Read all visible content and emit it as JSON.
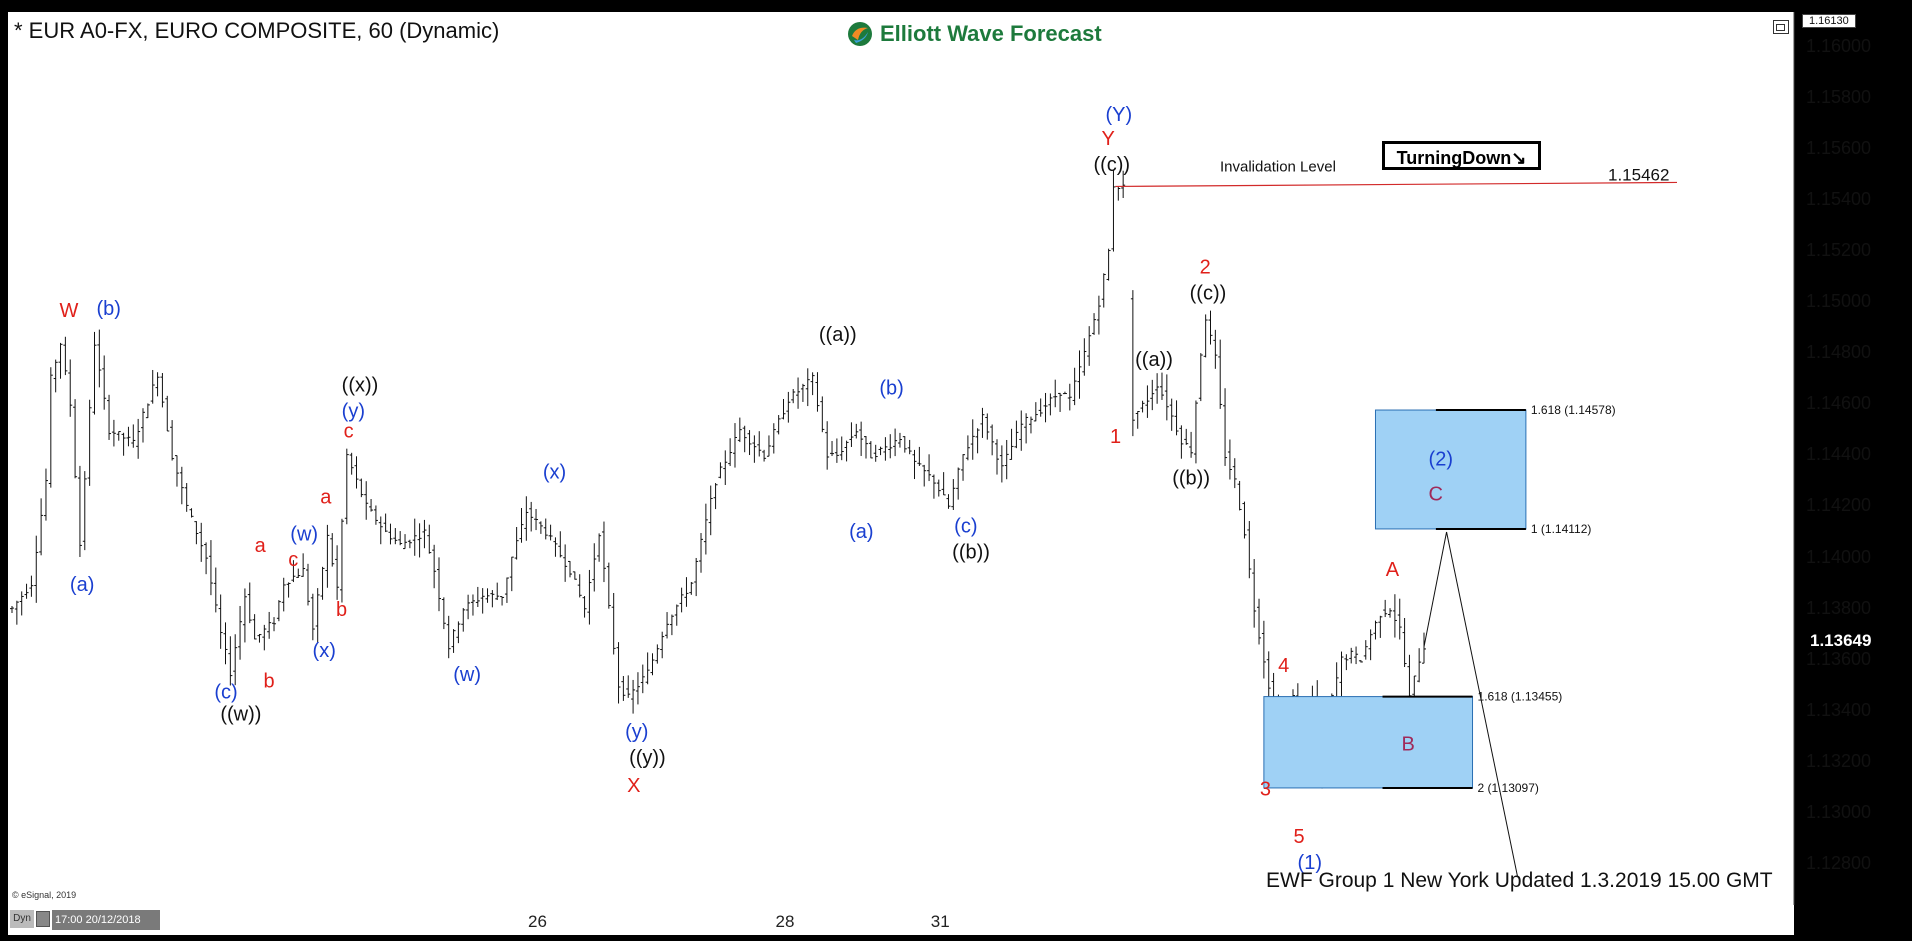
{
  "header": {
    "title": "* EUR A0-FX, EURO COMPOSITE, 60 (Dynamic)",
    "brand": "Elliott Wave Forecast",
    "brand_icon": "ewf-logo-icon"
  },
  "footer": {
    "copyright": "© eSignal, 2019",
    "update_note": "EWF Group 1 New York Updated 1.3.2019 15.00 GMT",
    "dyn_label": "Dyn",
    "cursor_date": "17:00 20/12/2018"
  },
  "badge": {
    "text": "TurningDown↘"
  },
  "price_axis": {
    "top_tag": "1.16130",
    "current_price": "1.13649",
    "labels": [
      "1.16000",
      "1.15800",
      "1.15600",
      "1.15400",
      "1.15200",
      "1.15000",
      "1.14800",
      "1.14600",
      "1.14400",
      "1.14200",
      "1.14000",
      "1.13800",
      "1.13600",
      "1.13400",
      "1.13200",
      "1.13000",
      "1.12800"
    ]
  },
  "colors": {
    "red": "#e0201a",
    "blue": "#1a3fd0",
    "black": "#111111",
    "purple": "#a02a5a",
    "box_fill": "#9fd1f5",
    "box_stroke": "#2a6fb3",
    "invalidation": "#d22a2a"
  },
  "chart_data": {
    "type": "ohlc",
    "title": "* EUR A0-FX, EURO COMPOSITE, 60 (Dynamic)",
    "x_ticks": [
      {
        "label": "26",
        "index": 108
      },
      {
        "label": "28",
        "index": 159
      },
      {
        "label": "31",
        "index": 191
      }
    ],
    "ylim": [
      1.1265,
      1.1613
    ],
    "y_ticks": [
      1.16,
      1.158,
      1.156,
      1.154,
      1.152,
      1.15,
      1.148,
      1.146,
      1.144,
      1.142,
      1.14,
      1.138,
      1.136,
      1.134,
      1.132,
      1.13,
      1.128
    ],
    "anchors": [
      [
        0,
        1.138
      ],
      [
        4,
        1.139
      ],
      [
        7,
        1.143
      ],
      [
        8,
        1.147
      ],
      [
        10,
        1.1484
      ],
      [
        12,
        1.146
      ],
      [
        14,
        1.1405
      ],
      [
        17,
        1.1484
      ],
      [
        20,
        1.145
      ],
      [
        25,
        1.1445
      ],
      [
        30,
        1.1472
      ],
      [
        33,
        1.144
      ],
      [
        36,
        1.142
      ],
      [
        40,
        1.14
      ],
      [
        43,
        1.137
      ],
      [
        45,
        1.1355
      ],
      [
        48,
        1.1385
      ],
      [
        50,
        1.1368
      ],
      [
        54,
        1.1375
      ],
      [
        56,
        1.139
      ],
      [
        60,
        1.1395
      ],
      [
        62,
        1.1372
      ],
      [
        65,
        1.1408
      ],
      [
        67,
        1.1388
      ],
      [
        69,
        1.144
      ],
      [
        73,
        1.142
      ],
      [
        77,
        1.141
      ],
      [
        80,
        1.1405
      ],
      [
        85,
        1.141
      ],
      [
        87,
        1.1395
      ],
      [
        90,
        1.1365
      ],
      [
        93,
        1.138
      ],
      [
        97,
        1.1385
      ],
      [
        101,
        1.1385
      ],
      [
        103,
        1.14
      ],
      [
        106,
        1.1418
      ],
      [
        110,
        1.141
      ],
      [
        115,
        1.1395
      ],
      [
        118,
        1.138
      ],
      [
        121,
        1.141
      ],
      [
        123,
        1.138
      ],
      [
        125,
        1.135
      ],
      [
        127,
        1.1345
      ],
      [
        131,
        1.1355
      ],
      [
        135,
        1.1375
      ],
      [
        140,
        1.139
      ],
      [
        145,
        1.143
      ],
      [
        150,
        1.145
      ],
      [
        155,
        1.144
      ],
      [
        160,
        1.1462
      ],
      [
        165,
        1.147
      ],
      [
        168,
        1.144
      ],
      [
        170,
        1.144
      ],
      [
        174,
        1.145
      ],
      [
        177,
        1.144
      ],
      [
        180,
        1.1443
      ],
      [
        183,
        1.1447
      ],
      [
        186,
        1.1437
      ],
      [
        190,
        1.143
      ],
      [
        193,
        1.142
      ],
      [
        196,
        1.144
      ],
      [
        200,
        1.1455
      ],
      [
        204,
        1.1435
      ],
      [
        208,
        1.1452
      ],
      [
        212,
        1.1458
      ],
      [
        216,
        1.1465
      ],
      [
        218,
        1.1462
      ],
      [
        221,
        1.148
      ],
      [
        224,
        1.15
      ],
      [
        226,
        1.152
      ],
      [
        227,
        1.1546
      ],
      [
        229,
        1.1545
      ]
    ],
    "anchors_right": [
      [
        231,
        1.1455
      ],
      [
        234,
        1.1462
      ],
      [
        236,
        1.1468
      ],
      [
        238,
        1.146
      ],
      [
        241,
        1.1446
      ],
      [
        243,
        1.1442
      ],
      [
        245,
        1.148
      ],
      [
        246,
        1.1494
      ],
      [
        248,
        1.1478
      ],
      [
        250,
        1.144
      ],
      [
        252,
        1.143
      ],
      [
        254,
        1.141
      ],
      [
        256,
        1.138
      ],
      [
        258,
        1.136
      ],
      [
        260,
        1.134
      ],
      [
        262,
        1.133
      ],
      [
        264,
        1.1345
      ],
      [
        266,
        1.132
      ],
      [
        268,
        1.1345
      ],
      [
        270,
        1.1315
      ],
      [
        272,
        1.1345
      ],
      [
        274,
        1.136
      ],
      [
        276,
        1.1362
      ],
      [
        278,
        1.136
      ],
      [
        280,
        1.137
      ],
      [
        282,
        1.1378
      ],
      [
        284,
        1.138
      ],
      [
        286,
        1.1372
      ],
      [
        288,
        1.1345
      ],
      [
        290,
        1.136
      ],
      [
        291,
        1.1365
      ]
    ],
    "invalidation": {
      "label": "Invalidation Level",
      "value_label": "1.15462",
      "value": 1.15462
    },
    "projection_boxes": [
      {
        "top": 1.14578,
        "bottom": 1.14112,
        "top_label": "1.618 (1.14578)",
        "bottom_label": "1 (1.14112)"
      },
      {
        "top": 1.13455,
        "bottom": 1.13097,
        "top_label": "1.618 (1.13455)",
        "bottom_label": "2 (1.13097)"
      }
    ],
    "wave_labels": [
      {
        "text": "W",
        "i": 10,
        "v": 1.1484,
        "color": "red"
      },
      {
        "text": "(b)",
        "i": 17,
        "v": 1.1484,
        "color": "blue"
      },
      {
        "text": "(a)",
        "i": 14,
        "v": 1.1405,
        "color": "blue"
      },
      {
        "text": "(c)",
        "i": 45,
        "v": 1.1355,
        "color": "blue"
      },
      {
        "text": "((w))",
        "i": 45,
        "v": 1.1355,
        "color": "black"
      },
      {
        "text": "a",
        "i": 50,
        "v": 1.1388,
        "color": "red"
      },
      {
        "text": "b",
        "i": 51,
        "v": 1.136,
        "color": "red"
      },
      {
        "text": "(w)",
        "i": 59,
        "v": 1.1395,
        "color": "blue"
      },
      {
        "text": "c",
        "i": 59,
        "v": 1.1392,
        "color": "red"
      },
      {
        "text": "(x)",
        "i": 64,
        "v": 1.1372,
        "color": "blue"
      },
      {
        "text": "a",
        "i": 66,
        "v": 1.1411,
        "color": "red"
      },
      {
        "text": "b",
        "i": 68,
        "v": 1.1388,
        "color": "red"
      },
      {
        "text": "c",
        "i": 70,
        "v": 1.144,
        "color": "red"
      },
      {
        "text": "(y)",
        "i": 70,
        "v": 1.144,
        "color": "blue"
      },
      {
        "text": "((x))",
        "i": 70,
        "v": 1.144,
        "color": "black"
      },
      {
        "text": "(x)",
        "i": 109,
        "v": 1.142,
        "color": "blue"
      },
      {
        "text": "(w)",
        "i": 93,
        "v": 1.1365,
        "color": "blue"
      },
      {
        "text": "(y)",
        "i": 128,
        "v": 1.1345,
        "color": "blue"
      },
      {
        "text": "((y))",
        "i": 128,
        "v": 1.1345,
        "color": "black"
      },
      {
        "text": "X",
        "i": 128,
        "v": 1.1345,
        "color": "red"
      },
      {
        "text": "((a))",
        "i": 170,
        "v": 1.1473,
        "color": "black"
      },
      {
        "text": "(a)",
        "i": 175,
        "v": 1.1435,
        "color": "blue"
      },
      {
        "text": "(b)",
        "i": 180,
        "v": 1.1453,
        "color": "blue"
      },
      {
        "text": "(c)",
        "i": 195,
        "v": 1.142,
        "color": "blue"
      },
      {
        "text": "((b))",
        "i": 195,
        "v": 1.142,
        "color": "black"
      },
      {
        "text": "(Y)",
        "i": 227,
        "v": 1.1546,
        "color": "blue"
      },
      {
        "text": "Y",
        "i": 227,
        "v": 1.1546,
        "color": "red"
      },
      {
        "text": "((c))",
        "i": 227,
        "v": 1.1546,
        "color": "black"
      },
      {
        "text": "1",
        "i": 230,
        "v": 1.1455,
        "color": "red"
      },
      {
        "text": "((a))",
        "i": 236,
        "v": 1.1468,
        "color": "black"
      },
      {
        "text": "((b))",
        "i": 242,
        "v": 1.1442,
        "color": "black"
      },
      {
        "text": "2",
        "i": 246,
        "v": 1.1494,
        "color": "red"
      },
      {
        "text": "((c))",
        "i": 246,
        "v": 1.1494,
        "color": "black"
      },
      {
        "text": "4",
        "i": 263,
        "v": 1.1348,
        "color": "red"
      },
      {
        "text": "3",
        "i": 258,
        "v": 1.132,
        "color": "red"
      },
      {
        "text": "5",
        "i": 267,
        "v": 1.131,
        "color": "red"
      },
      {
        "text": "(1)",
        "i": 267,
        "v": 1.131,
        "color": "blue"
      },
      {
        "text": "A",
        "i": 286,
        "v": 1.1385,
        "color": "red"
      },
      {
        "text": "B",
        "i": 288,
        "v": 1.134,
        "color": "purple"
      },
      {
        "text": "(2)",
        "i": 294,
        "v": 1.1422,
        "color": "blue"
      },
      {
        "text": "C",
        "i": 294,
        "v": 1.142,
        "color": "purple"
      }
    ]
  }
}
